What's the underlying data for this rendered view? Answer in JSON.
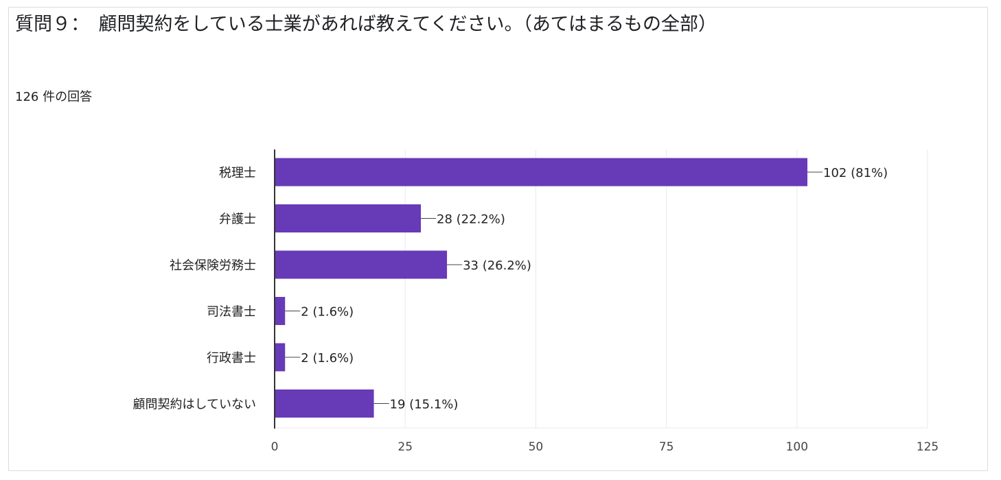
{
  "question": {
    "title": "質問９：　顧問契約をしている士業があれば教えてください。（あてはまるもの全部）",
    "response_count": "126 件の回答"
  },
  "colors": {
    "bar": "#673ab7",
    "grid": "#e8e8e8",
    "axis": "#333333"
  },
  "chart_data": {
    "type": "bar",
    "orientation": "horizontal",
    "categories": [
      "税理士",
      "弁護士",
      "社会保険労務士",
      "司法書士",
      "行政書士",
      "顧問契約はしていない"
    ],
    "values": [
      102,
      28,
      33,
      2,
      2,
      19
    ],
    "value_labels": [
      "102 (81%)",
      "28 (22.2%)",
      "33 (26.2%)",
      "2 (1.6%)",
      "2 (1.6%)",
      "19 (15.1%)"
    ],
    "xlim": [
      0,
      125
    ],
    "xticks": [
      0,
      25,
      50,
      75,
      100,
      125
    ],
    "grid": true
  }
}
